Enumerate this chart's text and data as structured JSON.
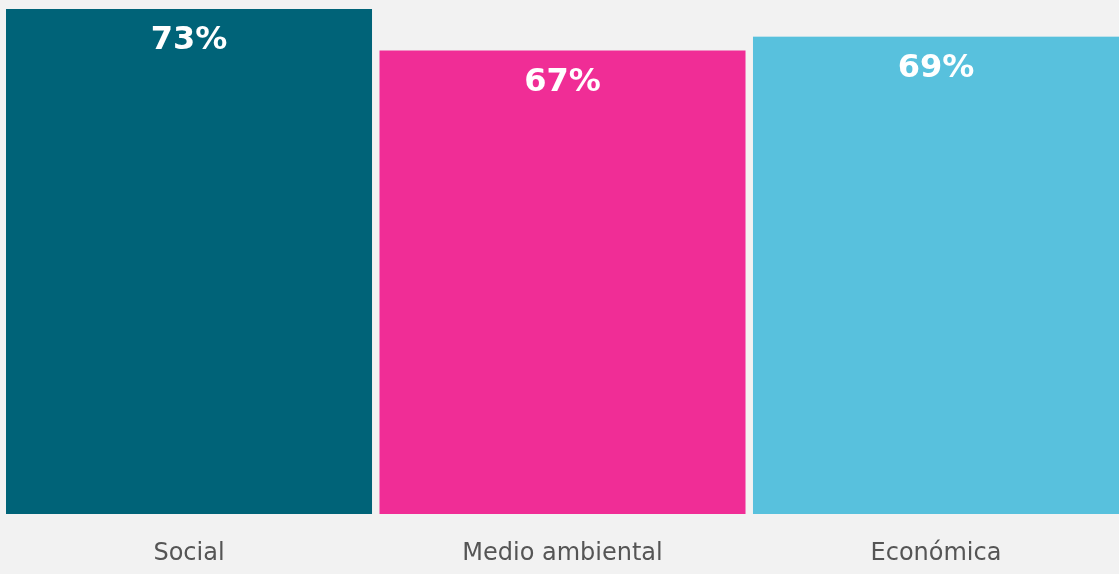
{
  "chart_data": {
    "type": "bar",
    "categories": [
      "Social",
      "Medio ambiental",
      "Económica"
    ],
    "values": [
      73,
      67,
      69
    ],
    "colors": [
      "#006378",
      "#f02d96",
      "#58c1dd"
    ],
    "value_labels": [
      "73%",
      "67%",
      "69%"
    ]
  }
}
